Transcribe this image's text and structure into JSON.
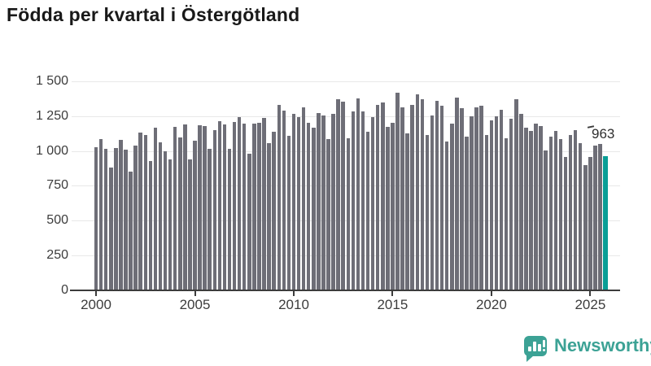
{
  "header": {
    "title": "Födda per kvartal i Östergötland"
  },
  "chart_data": {
    "type": "bar",
    "title": "Födda per kvartal i Östergötland",
    "x_unit": "quarter",
    "x_range": [
      "2000 Q1",
      "2025 Q4"
    ],
    "x_tick_labels": [
      "2000",
      "2005",
      "2010",
      "2015",
      "2020",
      "2025"
    ],
    "x_ticks_every_n_bars": 20,
    "y_tick_labels": [
      "1 500",
      "1 250",
      "1 000",
      "750",
      "500",
      "250",
      "0"
    ],
    "y_tick_values": [
      1500,
      1250,
      1000,
      750,
      500,
      250,
      0
    ],
    "ylim": [
      0,
      1500
    ],
    "grid": true,
    "legend": false,
    "values": [
      1029,
      1087,
      1015,
      883,
      1019,
      1077,
      1010,
      850,
      1039,
      1132,
      1117,
      930,
      1167,
      1064,
      1000,
      940,
      1171,
      1097,
      1190,
      938,
      1072,
      1185,
      1180,
      1015,
      1150,
      1214,
      1190,
      1012,
      1210,
      1243,
      1194,
      977,
      1194,
      1200,
      1239,
      1054,
      1140,
      1330,
      1288,
      1110,
      1264,
      1245,
      1311,
      1204,
      1167,
      1272,
      1253,
      1083,
      1264,
      1369,
      1355,
      1093,
      1282,
      1375,
      1282,
      1136,
      1245,
      1330,
      1350,
      1171,
      1200,
      1420,
      1311,
      1128,
      1330,
      1408,
      1369,
      1117,
      1253,
      1360,
      1322,
      1070,
      1194,
      1385,
      1307,
      1103,
      1249,
      1316,
      1326,
      1113,
      1220,
      1249,
      1293,
      1093,
      1229,
      1369,
      1264,
      1167,
      1142,
      1194,
      1181,
      1006,
      1103,
      1146,
      1083,
      957,
      1117,
      1151,
      1058,
      899,
      957,
      1039,
      1050,
      963
    ],
    "highlight": {
      "index": 103,
      "value": 963,
      "label": "963"
    },
    "colors": {
      "bar": "#6e6e77",
      "highlight": "#0a9e96",
      "axis": "#3c3c3c",
      "grid": "#e8e8e8"
    }
  },
  "branding": {
    "wordmark": "Newsworthy",
    "logo_icon": "speech-bubble-bar-chart",
    "color": "#3ca295"
  }
}
